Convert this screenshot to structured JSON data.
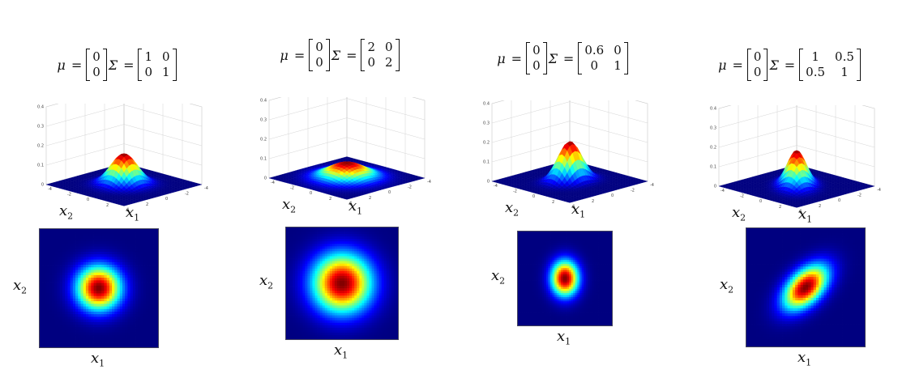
{
  "panels": [
    {
      "mu": [
        "0",
        "0"
      ],
      "sigma": [
        [
          "1",
          "0"
        ],
        [
          "0",
          "1"
        ]
      ],
      "params": {
        "s11": 1,
        "s22": 1,
        "s12": 0
      }
    },
    {
      "mu": [
        "0",
        "0"
      ],
      "sigma": [
        [
          "2",
          "0"
        ],
        [
          "0",
          "2"
        ]
      ],
      "params": {
        "s11": 2,
        "s22": 2,
        "s12": 0
      }
    },
    {
      "mu": [
        "0",
        "0"
      ],
      "sigma": [
        [
          "0.6",
          "0"
        ],
        [
          "0",
          "1"
        ]
      ],
      "params": {
        "s11": 0.6,
        "s22": 1,
        "s12": 0
      }
    },
    {
      "mu": [
        "0",
        "0"
      ],
      "sigma": [
        [
          "1",
          "0.5"
        ],
        [
          "0.5",
          "1"
        ]
      ],
      "params": {
        "s11": 1,
        "s22": 1,
        "s12": 0.5
      }
    }
  ],
  "labels": {
    "mu_symbol": "μ",
    "equals": "=",
    "sigma_symbol": "Σ",
    "x1_base": "x",
    "x1_sub": "1",
    "x2_base": "x",
    "x2_sub": "2"
  },
  "axis_ticks": {
    "z": [
      "0",
      "0.1",
      "0.2",
      "0.3",
      "0.4"
    ],
    "xy": [
      "-4",
      "-2",
      "0",
      "2",
      "4"
    ]
  },
  "colormap": "jet"
}
